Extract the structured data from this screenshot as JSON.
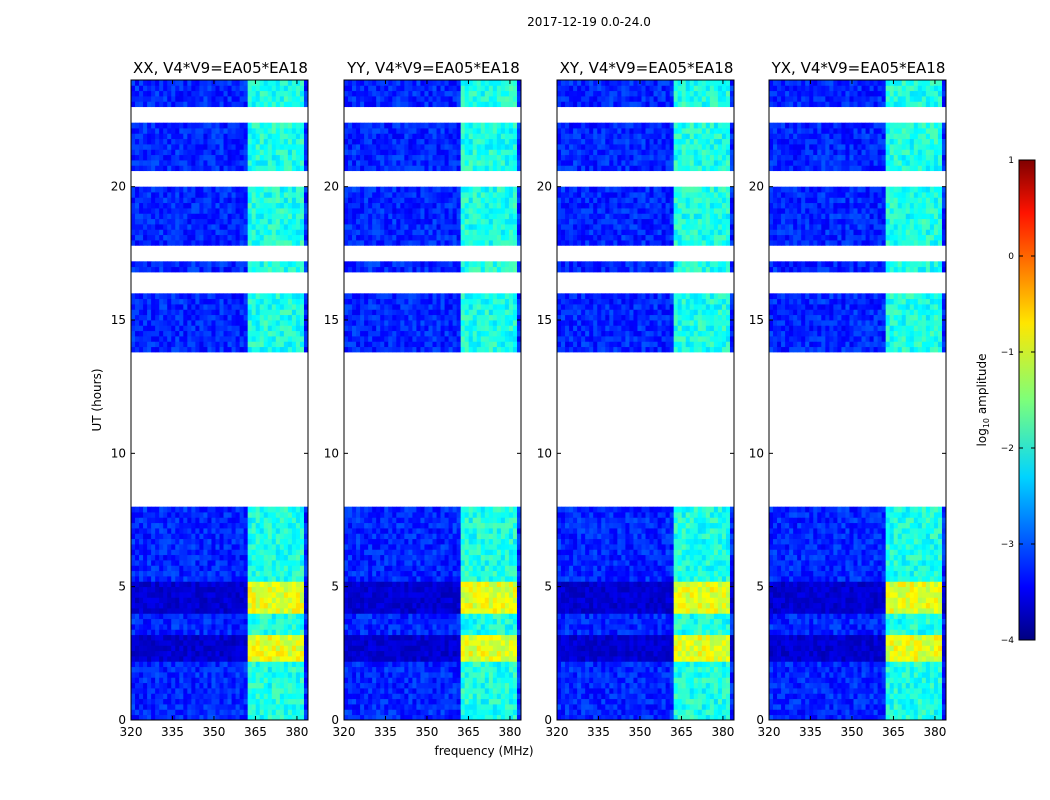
{
  "suptitle": "2017-12-19 0.0-24.0",
  "chart_data": {
    "type": "heatmap",
    "panels": [
      {
        "title": "XX, V4*V9=EA05*EA18",
        "pol": "XX"
      },
      {
        "title": "YY, V4*V9=EA05*EA18",
        "pol": "YY"
      },
      {
        "title": "XY, V4*V9=EA05*EA18",
        "pol": "XY"
      },
      {
        "title": "YX, V4*V9=EA05*EA18",
        "pol": "YX"
      }
    ],
    "xlabel": "frequency (MHz)",
    "ylabel": "UT (hours)",
    "xlim": [
      320,
      384
    ],
    "ylim": [
      0,
      24
    ],
    "x_ticks": [
      320,
      335,
      350,
      365,
      380
    ],
    "y_ticks": [
      0,
      5,
      10,
      15,
      20
    ],
    "colorbar": {
      "label_main": "log",
      "label_sub": "10",
      "label_tail": " amplitude",
      "range": [
        -4,
        1
      ],
      "ticks": [
        1,
        0,
        -1,
        -2,
        -3,
        -4
      ],
      "tick_labels": [
        "1",
        "0",
        "−1",
        "−2",
        "−3",
        "−4"
      ],
      "colormap": "jet"
    },
    "data_gaps_hours": [
      [
        8.0,
        13.9
      ],
      [
        15.9,
        16.9
      ],
      [
        17.3,
        17.9
      ],
      [
        20.05,
        20.7
      ],
      [
        22.5,
        23.0
      ]
    ],
    "rfi_band_mhz": [
      362,
      382
    ],
    "strong_rfi_hours": [
      [
        2.2,
        3.3
      ],
      [
        4.0,
        5.3
      ]
    ],
    "background_level": -3.2,
    "rfi_level": -2.0,
    "strong_rfi_level": -1.0
  }
}
